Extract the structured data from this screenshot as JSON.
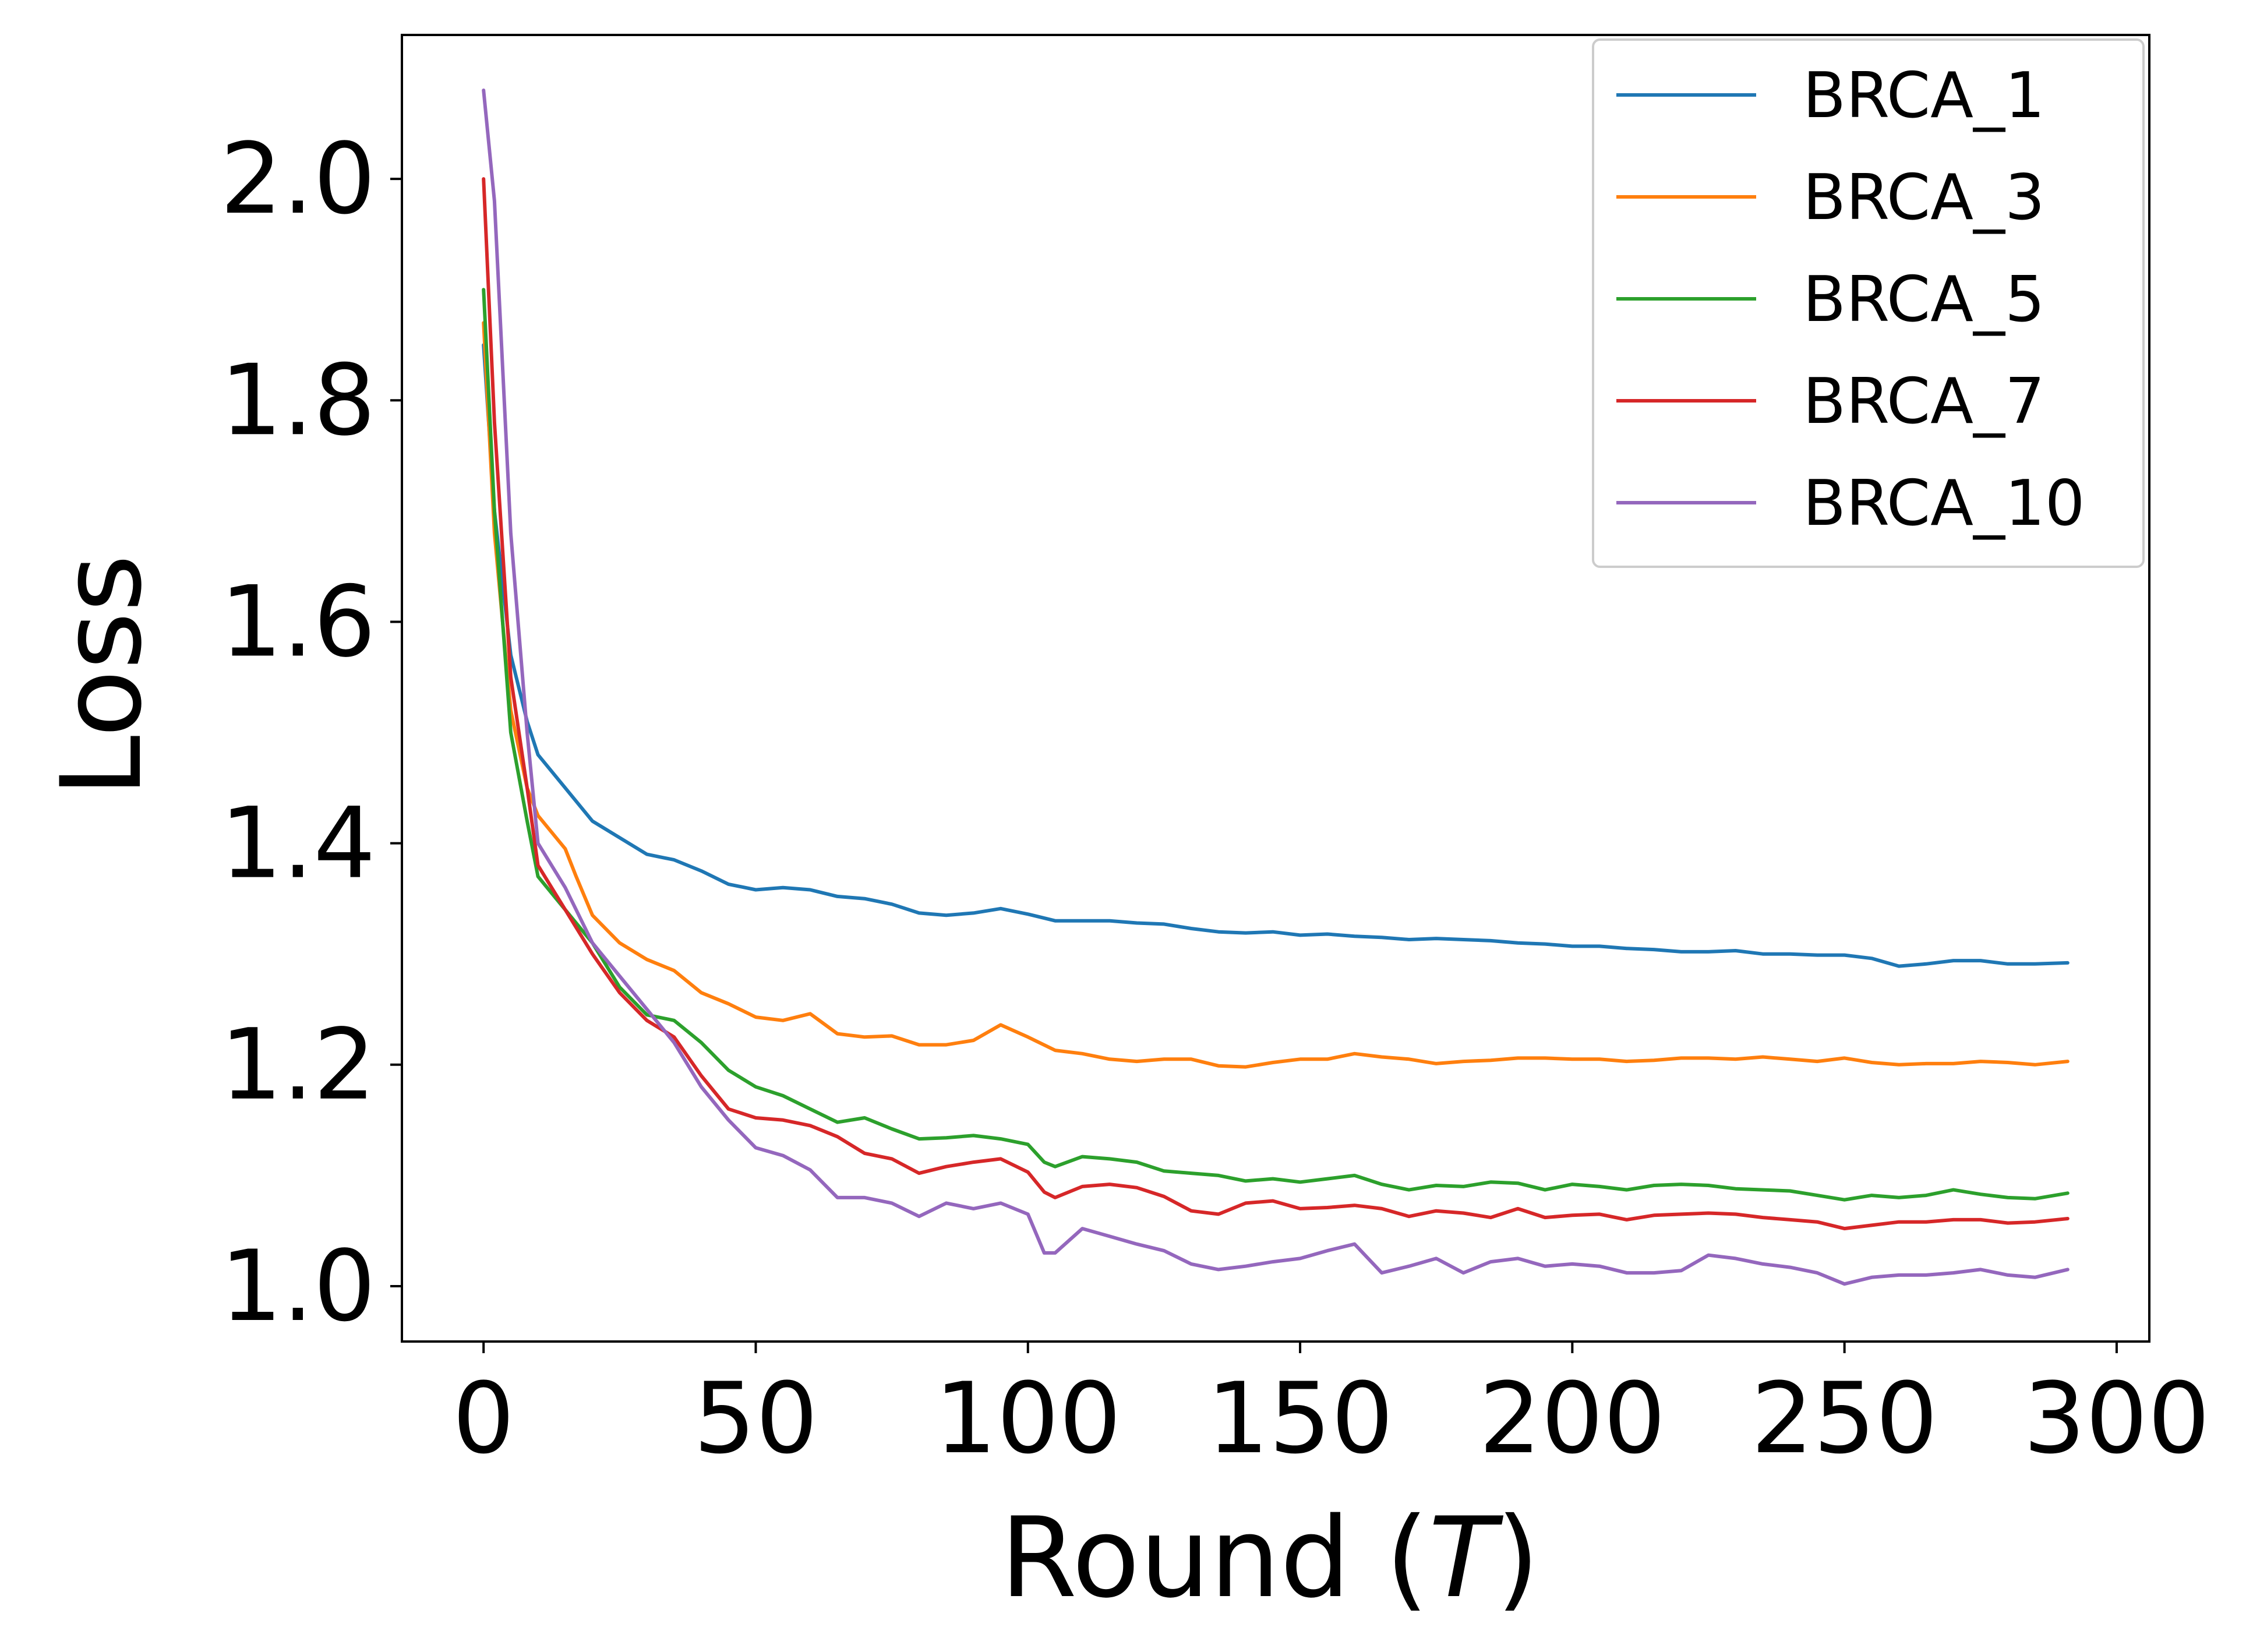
{
  "chart_data": {
    "type": "line",
    "xlabel": "Round (",
    "xlabel_var": "T",
    "xlabel_close": ")",
    "ylabel": "Loss",
    "xlim": [
      -15,
      306
    ],
    "ylim": [
      0.95,
      2.13
    ],
    "xticks": [
      0,
      50,
      100,
      150,
      200,
      250,
      300
    ],
    "yticks": [
      1.0,
      1.2,
      1.4,
      1.6,
      1.8,
      2.0
    ],
    "ytick_labels": [
      "1.0",
      "1.2",
      "1.4",
      "1.6",
      "1.8",
      "2.0"
    ],
    "grid": false,
    "legend_position": "top-right",
    "series": [
      {
        "name": "BRCA_1",
        "color": "#1f77b4",
        "points": [
          [
            0,
            1.85
          ],
          [
            2,
            1.7
          ],
          [
            5,
            1.57
          ],
          [
            8,
            1.51
          ],
          [
            10,
            1.48
          ],
          [
            15,
            1.45
          ],
          [
            20,
            1.42
          ],
          [
            25,
            1.405
          ],
          [
            30,
            1.39
          ],
          [
            35,
            1.385
          ],
          [
            40,
            1.375
          ],
          [
            45,
            1.363
          ],
          [
            50,
            1.358
          ],
          [
            55,
            1.36
          ],
          [
            60,
            1.358
          ],
          [
            65,
            1.352
          ],
          [
            70,
            1.35
          ],
          [
            75,
            1.345
          ],
          [
            80,
            1.337
          ],
          [
            85,
            1.335
          ],
          [
            90,
            1.337
          ],
          [
            95,
            1.341
          ],
          [
            100,
            1.336
          ],
          [
            105,
            1.33
          ],
          [
            110,
            1.33
          ],
          [
            115,
            1.33
          ],
          [
            120,
            1.328
          ],
          [
            125,
            1.327
          ],
          [
            130,
            1.323
          ],
          [
            135,
            1.32
          ],
          [
            140,
            1.319
          ],
          [
            145,
            1.32
          ],
          [
            150,
            1.317
          ],
          [
            155,
            1.318
          ],
          [
            160,
            1.316
          ],
          [
            165,
            1.315
          ],
          [
            170,
            1.313
          ],
          [
            175,
            1.314
          ],
          [
            180,
            1.313
          ],
          [
            185,
            1.312
          ],
          [
            190,
            1.31
          ],
          [
            195,
            1.309
          ],
          [
            200,
            1.307
          ],
          [
            205,
            1.307
          ],
          [
            210,
            1.305
          ],
          [
            215,
            1.304
          ],
          [
            220,
            1.302
          ],
          [
            225,
            1.302
          ],
          [
            230,
            1.303
          ],
          [
            235,
            1.3
          ],
          [
            240,
            1.3
          ],
          [
            245,
            1.299
          ],
          [
            250,
            1.299
          ],
          [
            255,
            1.296
          ],
          [
            260,
            1.289
          ],
          [
            265,
            1.291
          ],
          [
            270,
            1.294
          ],
          [
            275,
            1.294
          ],
          [
            280,
            1.291
          ],
          [
            285,
            1.291
          ],
          [
            291,
            1.292
          ]
        ]
      },
      {
        "name": "BRCA_3",
        "color": "#ff7f0e",
        "points": [
          [
            0,
            1.87
          ],
          [
            2,
            1.68
          ],
          [
            5,
            1.52
          ],
          [
            8,
            1.45
          ],
          [
            10,
            1.425
          ],
          [
            15,
            1.395
          ],
          [
            17,
            1.37
          ],
          [
            20,
            1.335
          ],
          [
            25,
            1.31
          ],
          [
            30,
            1.295
          ],
          [
            35,
            1.285
          ],
          [
            40,
            1.265
          ],
          [
            45,
            1.255
          ],
          [
            50,
            1.243
          ],
          [
            55,
            1.24
          ],
          [
            60,
            1.246
          ],
          [
            65,
            1.228
          ],
          [
            70,
            1.225
          ],
          [
            75,
            1.226
          ],
          [
            80,
            1.218
          ],
          [
            85,
            1.218
          ],
          [
            90,
            1.222
          ],
          [
            95,
            1.236
          ],
          [
            100,
            1.225
          ],
          [
            105,
            1.213
          ],
          [
            110,
            1.21
          ],
          [
            115,
            1.205
          ],
          [
            120,
            1.203
          ],
          [
            125,
            1.205
          ],
          [
            130,
            1.205
          ],
          [
            135,
            1.199
          ],
          [
            140,
            1.198
          ],
          [
            145,
            1.202
          ],
          [
            150,
            1.205
          ],
          [
            155,
            1.205
          ],
          [
            160,
            1.21
          ],
          [
            165,
            1.207
          ],
          [
            170,
            1.205
          ],
          [
            175,
            1.201
          ],
          [
            180,
            1.203
          ],
          [
            185,
            1.204
          ],
          [
            190,
            1.206
          ],
          [
            195,
            1.206
          ],
          [
            200,
            1.205
          ],
          [
            205,
            1.205
          ],
          [
            210,
            1.203
          ],
          [
            215,
            1.204
          ],
          [
            220,
            1.206
          ],
          [
            225,
            1.206
          ],
          [
            230,
            1.205
          ],
          [
            235,
            1.207
          ],
          [
            240,
            1.205
          ],
          [
            245,
            1.203
          ],
          [
            250,
            1.206
          ],
          [
            255,
            1.202
          ],
          [
            260,
            1.2
          ],
          [
            265,
            1.201
          ],
          [
            270,
            1.201
          ],
          [
            275,
            1.203
          ],
          [
            280,
            1.202
          ],
          [
            285,
            1.2
          ],
          [
            291,
            1.203
          ]
        ]
      },
      {
        "name": "BRCA_5",
        "color": "#2ca02c",
        "points": [
          [
            0,
            1.9
          ],
          [
            2,
            1.7
          ],
          [
            5,
            1.5
          ],
          [
            8,
            1.42
          ],
          [
            10,
            1.37
          ],
          [
            15,
            1.34
          ],
          [
            20,
            1.31
          ],
          [
            25,
            1.27
          ],
          [
            30,
            1.245
          ],
          [
            35,
            1.24
          ],
          [
            40,
            1.22
          ],
          [
            45,
            1.195
          ],
          [
            50,
            1.18
          ],
          [
            55,
            1.172
          ],
          [
            60,
            1.16
          ],
          [
            65,
            1.148
          ],
          [
            70,
            1.152
          ],
          [
            75,
            1.142
          ],
          [
            80,
            1.133
          ],
          [
            85,
            1.134
          ],
          [
            90,
            1.136
          ],
          [
            95,
            1.133
          ],
          [
            100,
            1.128
          ],
          [
            103,
            1.112
          ],
          [
            105,
            1.108
          ],
          [
            110,
            1.117
          ],
          [
            115,
            1.115
          ],
          [
            120,
            1.112
          ],
          [
            125,
            1.104
          ],
          [
            130,
            1.102
          ],
          [
            135,
            1.1
          ],
          [
            140,
            1.095
          ],
          [
            145,
            1.097
          ],
          [
            150,
            1.094
          ],
          [
            155,
            1.097
          ],
          [
            160,
            1.1
          ],
          [
            165,
            1.092
          ],
          [
            170,
            1.087
          ],
          [
            175,
            1.091
          ],
          [
            180,
            1.09
          ],
          [
            185,
            1.094
          ],
          [
            190,
            1.093
          ],
          [
            195,
            1.087
          ],
          [
            200,
            1.092
          ],
          [
            205,
            1.09
          ],
          [
            210,
            1.087
          ],
          [
            215,
            1.091
          ],
          [
            220,
            1.092
          ],
          [
            225,
            1.091
          ],
          [
            230,
            1.088
          ],
          [
            235,
            1.087
          ],
          [
            240,
            1.086
          ],
          [
            245,
            1.082
          ],
          [
            250,
            1.078
          ],
          [
            255,
            1.082
          ],
          [
            260,
            1.08
          ],
          [
            265,
            1.082
          ],
          [
            270,
            1.087
          ],
          [
            275,
            1.083
          ],
          [
            280,
            1.08
          ],
          [
            285,
            1.079
          ],
          [
            291,
            1.084
          ]
        ]
      },
      {
        "name": "BRCA_7",
        "color": "#d62728",
        "points": [
          [
            0,
            2.0
          ],
          [
            2,
            1.78
          ],
          [
            5,
            1.55
          ],
          [
            8,
            1.45
          ],
          [
            10,
            1.38
          ],
          [
            15,
            1.34
          ],
          [
            20,
            1.3
          ],
          [
            25,
            1.265
          ],
          [
            30,
            1.24
          ],
          [
            35,
            1.225
          ],
          [
            40,
            1.19
          ],
          [
            45,
            1.16
          ],
          [
            50,
            1.152
          ],
          [
            55,
            1.15
          ],
          [
            60,
            1.145
          ],
          [
            65,
            1.135
          ],
          [
            70,
            1.12
          ],
          [
            75,
            1.115
          ],
          [
            80,
            1.102
          ],
          [
            85,
            1.108
          ],
          [
            90,
            1.112
          ],
          [
            95,
            1.115
          ],
          [
            100,
            1.103
          ],
          [
            103,
            1.085
          ],
          [
            105,
            1.08
          ],
          [
            110,
            1.09
          ],
          [
            115,
            1.092
          ],
          [
            120,
            1.089
          ],
          [
            125,
            1.081
          ],
          [
            130,
            1.068
          ],
          [
            135,
            1.065
          ],
          [
            140,
            1.075
          ],
          [
            145,
            1.077
          ],
          [
            150,
            1.07
          ],
          [
            155,
            1.071
          ],
          [
            160,
            1.073
          ],
          [
            165,
            1.07
          ],
          [
            170,
            1.063
          ],
          [
            175,
            1.068
          ],
          [
            180,
            1.066
          ],
          [
            185,
            1.062
          ],
          [
            190,
            1.07
          ],
          [
            195,
            1.062
          ],
          [
            200,
            1.064
          ],
          [
            205,
            1.065
          ],
          [
            210,
            1.06
          ],
          [
            215,
            1.064
          ],
          [
            220,
            1.065
          ],
          [
            225,
            1.066
          ],
          [
            230,
            1.065
          ],
          [
            235,
            1.062
          ],
          [
            240,
            1.06
          ],
          [
            245,
            1.058
          ],
          [
            250,
            1.052
          ],
          [
            255,
            1.055
          ],
          [
            260,
            1.058
          ],
          [
            265,
            1.058
          ],
          [
            270,
            1.06
          ],
          [
            275,
            1.06
          ],
          [
            280,
            1.057
          ],
          [
            285,
            1.058
          ],
          [
            291,
            1.061
          ]
        ]
      },
      {
        "name": "BRCA_10",
        "color": "#9467bd",
        "points": [
          [
            0,
            2.08
          ],
          [
            2,
            1.98
          ],
          [
            5,
            1.68
          ],
          [
            8,
            1.5
          ],
          [
            10,
            1.4
          ],
          [
            15,
            1.36
          ],
          [
            20,
            1.31
          ],
          [
            25,
            1.28
          ],
          [
            30,
            1.25
          ],
          [
            35,
            1.22
          ],
          [
            40,
            1.18
          ],
          [
            45,
            1.15
          ],
          [
            50,
            1.125
          ],
          [
            55,
            1.118
          ],
          [
            60,
            1.105
          ],
          [
            65,
            1.08
          ],
          [
            70,
            1.08
          ],
          [
            75,
            1.075
          ],
          [
            80,
            1.063
          ],
          [
            85,
            1.075
          ],
          [
            90,
            1.07
          ],
          [
            95,
            1.075
          ],
          [
            100,
            1.065
          ],
          [
            103,
            1.03
          ],
          [
            105,
            1.03
          ],
          [
            110,
            1.052
          ],
          [
            115,
            1.045
          ],
          [
            120,
            1.038
          ],
          [
            125,
            1.032
          ],
          [
            130,
            1.02
          ],
          [
            135,
            1.015
          ],
          [
            140,
            1.018
          ],
          [
            145,
            1.022
          ],
          [
            150,
            1.025
          ],
          [
            155,
            1.032
          ],
          [
            160,
            1.038
          ],
          [
            165,
            1.012
          ],
          [
            170,
            1.018
          ],
          [
            175,
            1.025
          ],
          [
            180,
            1.012
          ],
          [
            185,
            1.022
          ],
          [
            190,
            1.025
          ],
          [
            195,
            1.018
          ],
          [
            200,
            1.02
          ],
          [
            205,
            1.018
          ],
          [
            210,
            1.012
          ],
          [
            215,
            1.012
          ],
          [
            220,
            1.014
          ],
          [
            225,
            1.028
          ],
          [
            230,
            1.025
          ],
          [
            235,
            1.02
          ],
          [
            240,
            1.017
          ],
          [
            245,
            1.012
          ],
          [
            250,
            1.002
          ],
          [
            255,
            1.008
          ],
          [
            260,
            1.01
          ],
          [
            265,
            1.01
          ],
          [
            270,
            1.012
          ],
          [
            275,
            1.015
          ],
          [
            280,
            1.01
          ],
          [
            285,
            1.008
          ],
          [
            291,
            1.015
          ]
        ]
      }
    ]
  }
}
